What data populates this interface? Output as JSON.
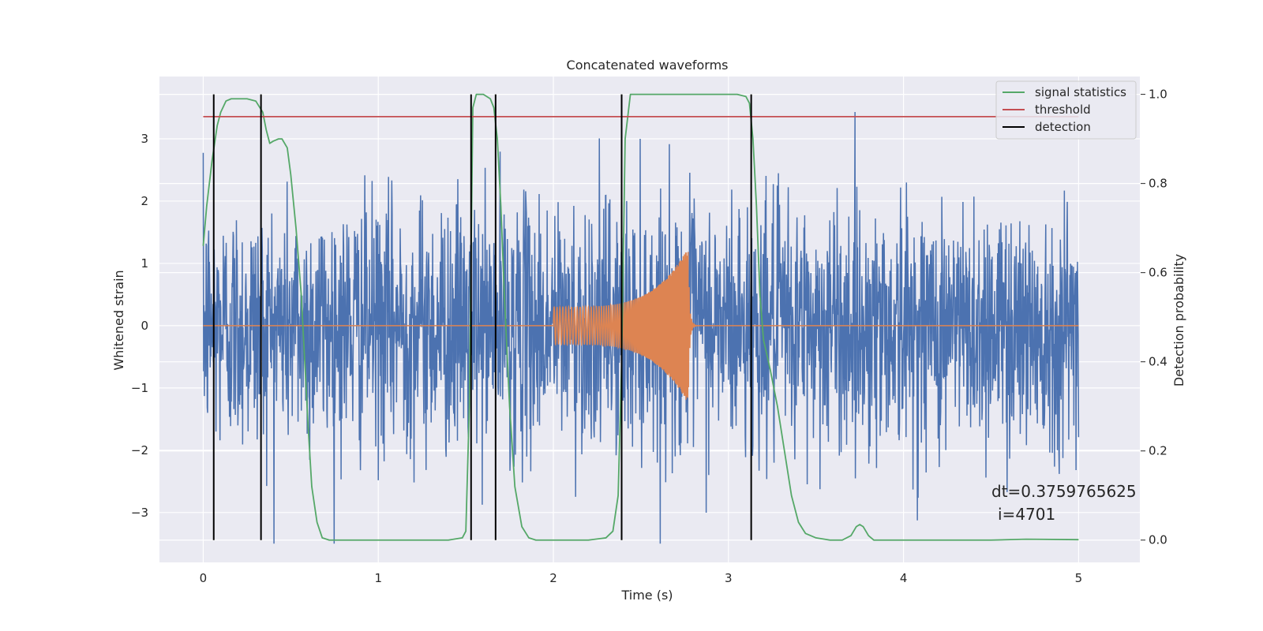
{
  "chart_data": {
    "type": "line",
    "title": "Concatenated waveforms",
    "xlabel": "Time (s)",
    "ylabel": "Whitened strain",
    "ylabel_right": "Detection probability",
    "xlim": [
      -0.25,
      5.35
    ],
    "ylim": [
      -3.8,
      4.0
    ],
    "ylim_right": [
      -0.05,
      1.04
    ],
    "x_ticks": [
      0,
      1,
      2,
      3,
      4,
      5
    ],
    "x_tick_labels": [
      "0",
      "1",
      "2",
      "3",
      "4",
      "5"
    ],
    "y_ticks": [
      -3,
      -2,
      -1,
      0,
      1,
      2,
      3
    ],
    "y_tick_labels": [
      "−3",
      "−2",
      "−1",
      "0",
      "1",
      "2",
      "3"
    ],
    "y_right_ticks": [
      0.0,
      0.2,
      0.4,
      0.6,
      0.8,
      1.0
    ],
    "y_right_tick_labels": [
      "0.0",
      "0.2",
      "0.4",
      "0.6",
      "0.8",
      "1.0"
    ],
    "grid": true,
    "legend_position": "top-right",
    "legend": [
      {
        "label": "signal statistics",
        "color": "#55a868"
      },
      {
        "label": "threshold",
        "color": "#c44e52"
      },
      {
        "label": "detection",
        "color": "#000000"
      }
    ],
    "noise": {
      "color": "#4c72b0",
      "x_range": [
        0,
        5
      ],
      "typical_amplitude": 1.0,
      "peak_amplitude": 3.5
    },
    "signal_waveform": {
      "color": "#dd8452",
      "x_range": [
        0,
        5
      ],
      "chirp_start": 2.0,
      "chirp_peak_time": 2.77,
      "start_amplitude": 0.3,
      "peak_amplitude": 1.25,
      "ringdown_end": 3.0
    },
    "series": [
      {
        "name": "signal statistics",
        "axis": "right",
        "color": "#55a868",
        "x": [
          0.0,
          0.02,
          0.05,
          0.08,
          0.1,
          0.13,
          0.16,
          0.2,
          0.25,
          0.3,
          0.34,
          0.36,
          0.38,
          0.4,
          0.43,
          0.45,
          0.48,
          0.5,
          0.53,
          0.56,
          0.58,
          0.6,
          0.62,
          0.65,
          0.68,
          0.72,
          0.8,
          1.0,
          1.2,
          1.4,
          1.48,
          1.5,
          1.52,
          1.54,
          1.56,
          1.6,
          1.64,
          1.66,
          1.68,
          1.7,
          1.72,
          1.75,
          1.78,
          1.82,
          1.86,
          1.9,
          2.0,
          2.2,
          2.3,
          2.34,
          2.37,
          2.39,
          2.41,
          2.44,
          2.5,
          2.7,
          2.9,
          3.05,
          3.1,
          3.12,
          3.14,
          3.16,
          3.18,
          3.2,
          3.24,
          3.28,
          3.32,
          3.36,
          3.4,
          3.44,
          3.5,
          3.58,
          3.65,
          3.7,
          3.73,
          3.75,
          3.77,
          3.8,
          3.83,
          3.9,
          4.2,
          4.5,
          4.7,
          5.0
        ],
        "values": [
          0.66,
          0.75,
          0.85,
          0.93,
          0.96,
          0.985,
          0.99,
          0.99,
          0.99,
          0.985,
          0.96,
          0.92,
          0.89,
          0.895,
          0.9,
          0.9,
          0.88,
          0.82,
          0.7,
          0.55,
          0.4,
          0.25,
          0.12,
          0.04,
          0.005,
          0.0,
          0.0,
          0.0,
          0.0,
          0.0,
          0.005,
          0.02,
          0.3,
          0.97,
          1.0,
          1.0,
          0.99,
          0.97,
          0.9,
          0.75,
          0.55,
          0.3,
          0.12,
          0.03,
          0.005,
          0.0,
          0.0,
          0.0,
          0.005,
          0.02,
          0.1,
          0.4,
          0.9,
          1.0,
          1.0,
          1.0,
          1.0,
          1.0,
          0.995,
          0.98,
          0.9,
          0.75,
          0.55,
          0.45,
          0.38,
          0.3,
          0.2,
          0.1,
          0.04,
          0.015,
          0.005,
          0.0,
          0.0,
          0.01,
          0.03,
          0.035,
          0.03,
          0.01,
          0.0,
          0.0,
          0.0,
          0.0,
          0.002,
          0.001
        ]
      },
      {
        "name": "threshold",
        "axis": "right",
        "color": "#c44e52",
        "x": [
          0,
          5
        ],
        "values": [
          0.95,
          0.95
        ]
      }
    ],
    "detections": {
      "color": "#000000",
      "x": [
        0.06,
        0.33,
        1.53,
        1.67,
        2.39,
        3.13
      ]
    },
    "annotation_lines": [
      "dt=0.3759765625",
      "i=4701"
    ]
  }
}
